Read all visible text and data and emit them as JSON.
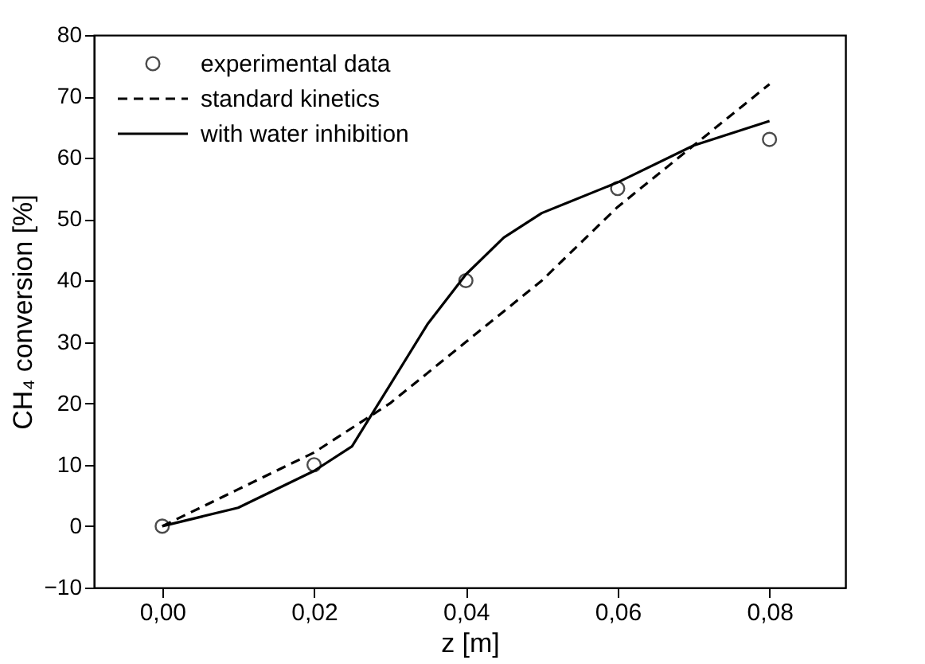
{
  "chart_data": {
    "type": "line",
    "xlabel": "z [m]",
    "ylabel": "CH₄ conversion [%]",
    "xlim": [
      -0.009,
      0.09
    ],
    "ylim": [
      -10,
      80
    ],
    "xticks": [
      {
        "value": 0,
        "label": "0,00"
      },
      {
        "value": 0.02,
        "label": "0,02"
      },
      {
        "value": 0.04,
        "label": "0,04"
      },
      {
        "value": 0.06,
        "label": "0,06"
      },
      {
        "value": 0.08,
        "label": "0,08"
      }
    ],
    "yticks": [
      -10,
      0,
      10,
      20,
      30,
      40,
      50,
      60,
      70,
      80
    ],
    "grid": false,
    "legend": "top left",
    "series": [
      {
        "name": "experimental data",
        "type": "scatter",
        "marker": "circle",
        "color": "#000000",
        "x": [
          0,
          0.02,
          0.04,
          0.06,
          0.08
        ],
        "values": [
          0,
          10,
          40,
          55,
          63
        ]
      },
      {
        "name": "standard kinetics",
        "type": "line",
        "line_style": "dashed",
        "marker": "none",
        "color": "#000000",
        "x": [
          0,
          0.01,
          0.02,
          0.03,
          0.04,
          0.05,
          0.06,
          0.07,
          0.08
        ],
        "values": [
          0,
          6,
          12,
          20,
          30,
          40,
          52,
          62,
          72
        ]
      },
      {
        "name": "with water inhibition",
        "type": "line",
        "line_style": "solid",
        "marker": "none",
        "color": "#000000",
        "x": [
          0,
          0.01,
          0.02,
          0.025,
          0.03,
          0.035,
          0.04,
          0.045,
          0.05,
          0.06,
          0.07,
          0.08
        ],
        "values": [
          0,
          3,
          9,
          13,
          23,
          33,
          41,
          47,
          51,
          56,
          62,
          66
        ]
      }
    ]
  }
}
